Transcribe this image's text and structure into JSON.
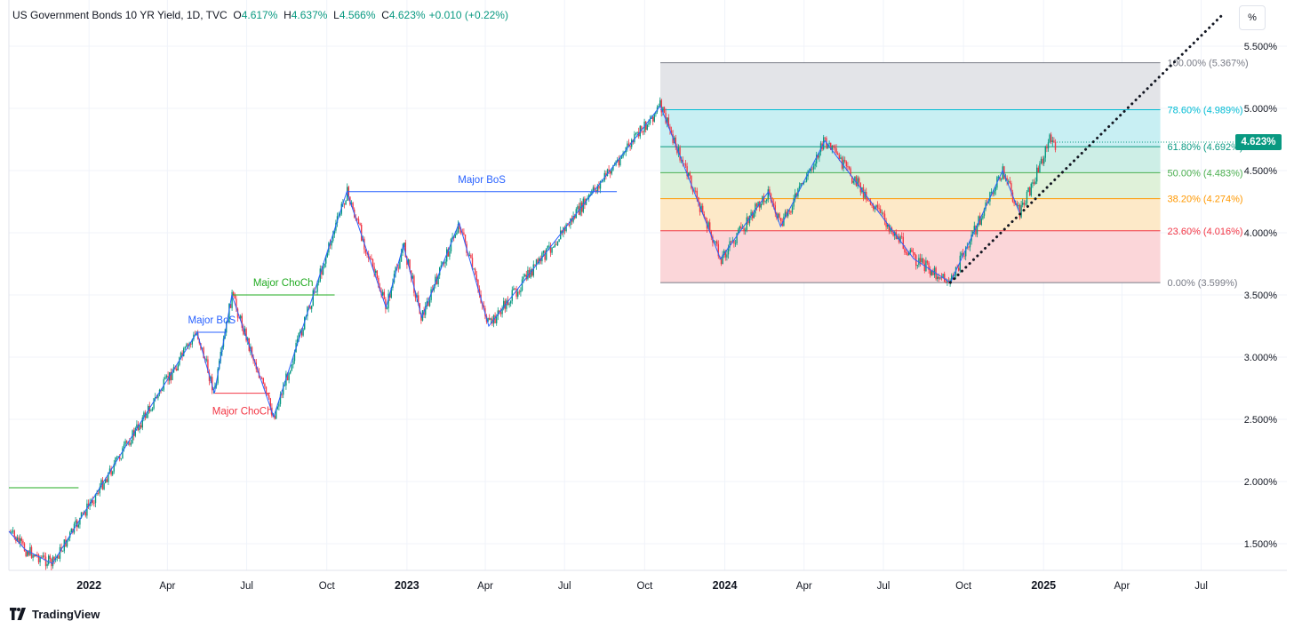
{
  "legend": {
    "symbol": "US Government Bonds 10 YR Yield, 1D, TVC",
    "open_label": "O",
    "open": "4.617%",
    "high_label": "H",
    "high": "4.637%",
    "low_label": "L",
    "low": "4.566%",
    "close_label": "C",
    "close": "4.623%",
    "change": "+0.010 (+0.22%)"
  },
  "scale_button": "%",
  "last_price_badge": "4.623%",
  "brand": "TradingView",
  "colors": {
    "up": "#089981",
    "down": "#f23645",
    "structure": "#2962ff",
    "choch_green": "#22ab22",
    "choch_red": "#f23645"
  },
  "chart_data": {
    "type": "candlestick",
    "y_axis": {
      "ticks": [
        "5.500%",
        "5.000%",
        "4.500%",
        "4.000%",
        "3.500%",
        "3.000%",
        "2.500%",
        "2.000%",
        "1.500%"
      ],
      "tick_values": [
        5.5,
        5.0,
        4.5,
        4.0,
        3.5,
        3.0,
        2.5,
        2.0,
        1.5
      ],
      "range": [
        1.3,
        5.75
      ]
    },
    "x_axis": {
      "ticks": [
        "2022",
        "Apr",
        "Jul",
        "Oct",
        "2023",
        "Apr",
        "Jul",
        "Oct",
        "2024",
        "Apr",
        "Jul",
        "Oct",
        "2025",
        "Apr",
        "Jul"
      ],
      "tick_dates": [
        "2022-01",
        "2022-04",
        "2022-07",
        "2022-10",
        "2023-01",
        "2023-04",
        "2023-07",
        "2023-10",
        "2024-01",
        "2024-04",
        "2024-07",
        "2024-10",
        "2025-01",
        "2025-04",
        "2025-07"
      ],
      "bold_ticks": [
        "2022",
        "2023",
        "2024",
        "2025"
      ],
      "range": [
        "2021-10",
        "2025-08"
      ]
    },
    "structure_line": [
      [
        "2021-10",
        1.6
      ],
      [
        "2021-10-20",
        1.45
      ],
      [
        "2021-11-20",
        1.34
      ],
      [
        "2022-05-05",
        3.2
      ],
      [
        "2022-05-25",
        2.71
      ],
      [
        "2022-06-14",
        3.5
      ],
      [
        "2022-08-01",
        2.52
      ],
      [
        "2022-10-24",
        4.33
      ],
      [
        "2022-12-08",
        3.4
      ],
      [
        "2022-12-28",
        3.9
      ],
      [
        "2023-01-18",
        3.32
      ],
      [
        "2023-03-02",
        4.08
      ],
      [
        "2023-04-05",
        3.25
      ],
      [
        "2023-10-19",
        5.02
      ],
      [
        "2023-12-27",
        3.79
      ],
      [
        "2024-02-20",
        4.33
      ],
      [
        "2024-03-05",
        4.05
      ],
      [
        "2024-04-25",
        4.74
      ],
      [
        "2024-08-05",
        3.79
      ],
      [
        "2024-09-16",
        3.6
      ],
      [
        "2024-11-15",
        4.5
      ],
      [
        "2024-12-05",
        4.15
      ]
    ],
    "markers": [
      {
        "label": "Major BoS",
        "from": [
          "2022-10-24",
          4.33
        ],
        "to": [
          "2023-08-30",
          4.33
        ],
        "color": "#2962ff"
      },
      {
        "label": "Major BoS",
        "from": [
          "2022-05-05",
          3.2
        ],
        "to": [
          "2022-06-08",
          3.2
        ],
        "color": "#2962ff"
      },
      {
        "label": "Major ChoCh",
        "from": [
          "2022-06-14",
          3.5
        ],
        "to": [
          "2022-10-10",
          3.5
        ],
        "color": "#22ab22"
      },
      {
        "label": "Major ChoCh",
        "from": [
          "2022-05-25",
          2.71
        ],
        "to": [
          "2022-07-28",
          2.71
        ],
        "color": "#f23645"
      },
      {
        "label": "",
        "from": [
          "2021-10",
          1.95
        ],
        "to": [
          "2021-12-20",
          1.95
        ],
        "color": "#22ab22"
      }
    ],
    "fibonacci": {
      "start_date": "2023-10-19",
      "end_date": "2025-05-15",
      "levels": [
        {
          "label": "100.00% (5.367%)",
          "value": 5.367,
          "color": "#787b86",
          "fill": "#e3e4e8"
        },
        {
          "label": "78.60% (4.989%)",
          "value": 4.989,
          "color": "#00bcd4",
          "fill": "#c8eff3"
        },
        {
          "label": "61.80% (4.692%)",
          "value": 4.692,
          "color": "#089981",
          "fill": "#cdeee6"
        },
        {
          "label": "50.00% (4.483%)",
          "value": 4.483,
          "color": "#4caf50",
          "fill": "#dff1d9"
        },
        {
          "label": "38.20% (4.274%)",
          "value": 4.274,
          "color": "#ff9800",
          "fill": "#fde9c8"
        },
        {
          "label": "23.60% (4.016%)",
          "value": 4.016,
          "color": "#f23645",
          "fill": "#fbd6d9"
        },
        {
          "label": "0.00% (3.599%)",
          "value": 3.599,
          "color": "#787b86",
          "fill": ""
        }
      ]
    },
    "trendline_dotted": {
      "from": [
        "2024-09-16",
        3.6
      ],
      "to": [
        "2025-07-25",
        5.75
      ]
    }
  }
}
